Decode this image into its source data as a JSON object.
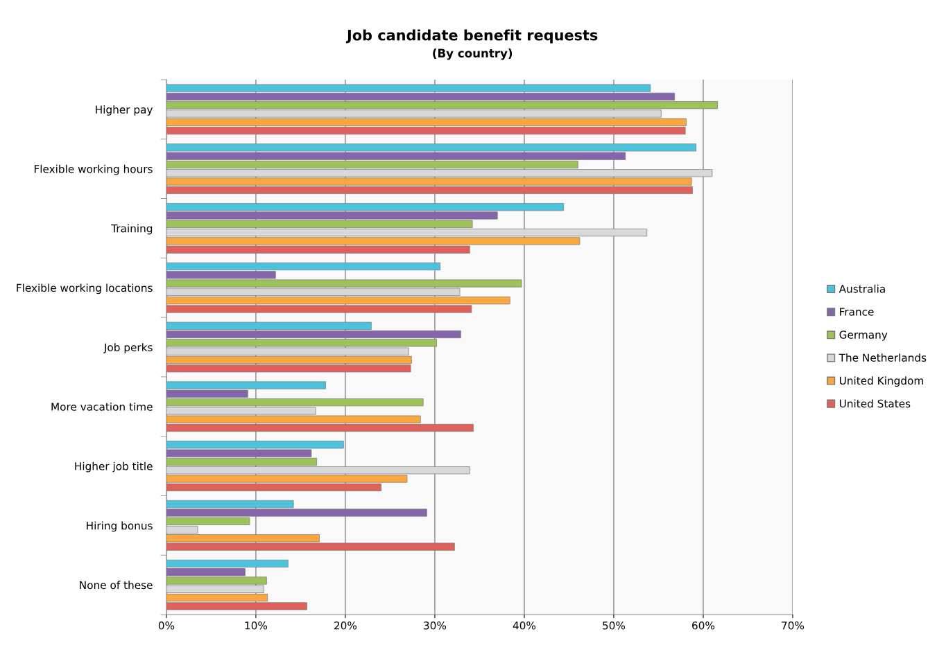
{
  "chart_data": {
    "type": "bar",
    "orientation": "horizontal",
    "title": "Job candidate benefit requests",
    "subtitle": "(By country)",
    "categories": [
      "Higher pay",
      "Flexible working hours",
      "Training",
      "Flexible working locations",
      "Job perks",
      "More vacation time",
      "Higher job title",
      "Hiring bonus",
      "None of these"
    ],
    "series": [
      {
        "name": "Australia",
        "color": "#4bc3dc",
        "values": [
          54.1,
          59.2,
          44.4,
          30.6,
          22.9,
          17.8,
          19.8,
          14.2,
          13.6
        ]
      },
      {
        "name": "France",
        "color": "#8566ab",
        "values": [
          56.8,
          51.3,
          37.0,
          12.2,
          32.9,
          9.1,
          16.2,
          29.1,
          8.8
        ]
      },
      {
        "name": "Germany",
        "color": "#9dc25a",
        "values": [
          61.6,
          46.0,
          34.2,
          39.7,
          30.2,
          28.7,
          16.8,
          9.3,
          11.2
        ]
      },
      {
        "name": "The Netherlands",
        "color": "#d8d8d8",
        "values": [
          55.3,
          61.0,
          53.7,
          32.8,
          27.1,
          16.7,
          33.9,
          3.5,
          10.9
        ]
      },
      {
        "name": "United Kingdom",
        "color": "#f9a73e",
        "values": [
          58.1,
          58.7,
          46.2,
          38.4,
          27.4,
          28.4,
          26.9,
          17.1,
          11.3
        ]
      },
      {
        "name": "United States",
        "color": "#e0605c",
        "values": [
          58.0,
          58.8,
          33.9,
          34.1,
          27.3,
          34.3,
          24.0,
          32.2,
          15.7
        ]
      }
    ],
    "xlim": [
      0,
      70
    ],
    "xticks": [
      {
        "value": 0,
        "label": "0%"
      },
      {
        "value": 10,
        "label": "10%"
      },
      {
        "value": 20,
        "label": "20%"
      },
      {
        "value": 30,
        "label": "30%"
      },
      {
        "value": 40,
        "label": "40%"
      },
      {
        "value": 50,
        "label": "50%"
      },
      {
        "value": 60,
        "label": "60%"
      },
      {
        "value": 70,
        "label": "70%"
      }
    ],
    "grid": "x",
    "legend": "right"
  }
}
